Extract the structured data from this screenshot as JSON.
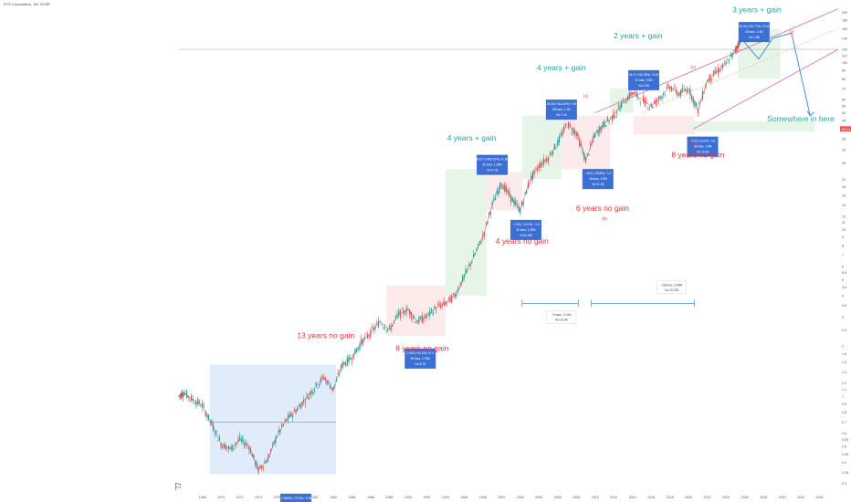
{
  "header": {
    "title": "RTX Corporation, 1M, NYSE"
  },
  "logo_glyph": "⚐",
  "colors": {
    "green_text": "#26a69a",
    "red_text": "#e53935",
    "blue_box": "#3b6fd4",
    "green_zone": "#e7f5e9",
    "red_zone": "#fdeaea",
    "blue_zone": "#e1ecfb",
    "candle_up": "#26a69a",
    "candle_down": "#ef5350",
    "channel": "#d36a9b",
    "midline": "#f4a96b",
    "arrow": "#4a8fe0",
    "last_price_bg": "#ef5350"
  },
  "chart_data": {
    "type": "line",
    "title": "",
    "xlabel": "",
    "ylabel": "",
    "scale": "log",
    "xlim": [
      1965.5,
      2036
    ],
    "ylim": [
      0.28,
      220
    ],
    "x_ticks": [
      "1968",
      "1970",
      "1972",
      "1974",
      "1976",
      "1978",
      "1980",
      "1982",
      "1984",
      "1986",
      "1988",
      "1990",
      "1992",
      "1994",
      "1996",
      "1998",
      "2000",
      "2002",
      "2004",
      "2006",
      "2008",
      "2010",
      "2012",
      "2014",
      "2016",
      "2018",
      "2020",
      "2022",
      "2024",
      "2026",
      "2028",
      "2030",
      "2032",
      "2034"
    ],
    "y_ticks": [
      "200",
      "180",
      "160",
      "140",
      "120",
      "110",
      "100",
      "90",
      "80",
      "70",
      "60",
      "55",
      "50",
      "45",
      "40",
      "35",
      "30",
      "25",
      "20",
      "18",
      "16",
      "14",
      "12",
      "11",
      "10",
      "9",
      "8",
      "7",
      "6",
      "5.5",
      "5",
      "4.5",
      "4",
      "3.5",
      "3",
      "2.5",
      "2",
      "1.8",
      "1.6",
      "1.4",
      "1.2",
      "1.1",
      "1",
      "0.9",
      "0.8",
      "0.7",
      "0.6",
      "0.55",
      "0.5",
      "0.45",
      "0.4",
      "0.35",
      "0.3"
    ],
    "last_price": {
      "value": 40.0,
      "label": "40.13"
    },
    "series": [
      {
        "values": [
          [
            1965.5,
            1.0
          ],
          [
            1966,
            1.05
          ],
          [
            1967,
            0.95
          ],
          [
            1968,
            0.88
          ],
          [
            1969,
            0.68
          ],
          [
            1970,
            0.52
          ],
          [
            1971,
            0.48
          ],
          [
            1972,
            0.55
          ],
          [
            1973,
            0.5
          ],
          [
            1974,
            0.36
          ],
          [
            1975,
            0.42
          ],
          [
            1976,
            0.58
          ],
          [
            1977,
            0.72
          ],
          [
            1978,
            0.82
          ],
          [
            1979,
            0.96
          ],
          [
            1980,
            1.12
          ],
          [
            1981,
            1.3
          ],
          [
            1982,
            1.1
          ],
          [
            1983,
            1.55
          ],
          [
            1984,
            1.7
          ],
          [
            1985,
            2.1
          ],
          [
            1986,
            2.4
          ],
          [
            1987,
            2.8
          ],
          [
            1988,
            2.5
          ],
          [
            1989,
            3.1
          ],
          [
            1990,
            3.3
          ],
          [
            1991,
            2.8
          ],
          [
            1992,
            3.0
          ],
          [
            1993,
            3.4
          ],
          [
            1994,
            3.6
          ],
          [
            1995,
            4.0
          ],
          [
            1996,
            5.2
          ],
          [
            1997,
            6.8
          ],
          [
            1998,
            9.0
          ],
          [
            1999,
            14.0
          ],
          [
            2000,
            19.0
          ],
          [
            2001,
            15.5
          ],
          [
            2002,
            13.0
          ],
          [
            2003,
            19.5
          ],
          [
            2004,
            24.0
          ],
          [
            2005,
            27.0
          ],
          [
            2006,
            33.0
          ],
          [
            2007,
            43.0
          ],
          [
            2008,
            38.0
          ],
          [
            2009,
            26.0
          ],
          [
            2010,
            37.0
          ],
          [
            2011,
            43.0
          ],
          [
            2012,
            48.0
          ],
          [
            2013,
            58.0
          ],
          [
            2014,
            66.0
          ],
          [
            2015,
            60.0
          ],
          [
            2016,
            55.0
          ],
          [
            2017,
            62.0
          ],
          [
            2018,
            72.0
          ],
          [
            2019,
            65.0
          ],
          [
            2020,
            70.0
          ],
          [
            2021,
            52.0
          ],
          [
            2022,
            78.0
          ],
          [
            2023,
            88.0
          ],
          [
            2024,
            98.0
          ],
          [
            2025,
            118.0
          ],
          [
            2025.6,
            140.0
          ]
        ]
      }
    ],
    "annotations": [
      {
        "text": "13 years no gain",
        "x": 1981.2,
        "y": 2.22,
        "color": "red"
      },
      {
        "text": "8 years no gain",
        "x": 1991.5,
        "y": 1.86,
        "color": "red"
      },
      {
        "text": "4 years +  gain",
        "x": 1996.8,
        "y": 34.0,
        "color": "green"
      },
      {
        "text": "4 years no gain",
        "x": 2002.2,
        "y": 8.2,
        "color": "red"
      },
      {
        "text": "4 years +  gain",
        "x": 2006.4,
        "y": 90.0,
        "color": "green"
      },
      {
        "text": "6 years no gain",
        "x": 2010.8,
        "y": 12.9,
        "color": "red"
      },
      {
        "text": "2 years +  gain",
        "x": 2014.6,
        "y": 140.0,
        "color": "green"
      },
      {
        "text": "8 years no gain",
        "x": 2021.0,
        "y": 27.0,
        "color": "red"
      },
      {
        "text": "3 years +  gain",
        "x": 2027.3,
        "y": 200.0,
        "color": "green"
      },
      {
        "text": "Somewhere in here",
        "x": 2032.0,
        "y": 44.5,
        "color": "green"
      }
    ],
    "wave_labels": [
      {
        "text": "(B)",
        "x": 2011.0,
        "y": 11.4
      },
      {
        "text": "(C)",
        "x": 2020.5,
        "y": 92.0
      },
      {
        "text": "(A)",
        "x": 2009.0,
        "y": 62.0
      },
      {
        "text": "(1)",
        "x": 2020.6,
        "y": 32.0
      },
      {
        "text": "(2)",
        "x": 2031.0,
        "y": 150.0
      }
    ],
    "info_boxes": [
      {
        "lines": [
          "−0.5808 (−70.9%) −0.58",
          "86 bars, 1M 1s",
          "Vol 1.8B"
        ],
        "x": 1978.0,
        "y": 0.26
      },
      {
        "lines": [
          "0.325 (+10.2%) +0.3",
          "99 bars, 2.79M",
          "Vol 8.7B"
        ],
        "x": 1991.3,
        "y": 1.93
      },
      {
        "lines": [
          "18.07 (+895.22%) +1.80",
          "50 bars, 1.35M",
          "Vol 4.1B"
        ],
        "x": 1999.0,
        "y": 28.0
      },
      {
        "lines": [
          "−2.95 (−14.0%) −1.8",
          "50 bars, 1.35M",
          "Vol 8.25B"
        ],
        "x": 2002.6,
        "y": 11.4
      },
      {
        "lines": [
          "28.35 (+114.02%) +2.8",
          "58 bars, 1.4M",
          "Vol 7.1B"
        ],
        "x": 2006.4,
        "y": 60.0
      },
      {
        "lines": [
          "−10.3 (−28.8%) −1.0",
          "45 bars, 1.9M",
          "Vol 11.1B"
        ],
        "x": 2010.3,
        "y": 23.0
      },
      {
        "lines": [
          "34.47 (+60.35%) +3.44",
          "22 bars, 9.5B",
          "Vol 2.9B"
        ],
        "x": 2015.2,
        "y": 90.0
      },
      {
        "lines": [
          "−5.03 (−8.0%) −0.5",
          "38 bars, 2.9M",
          "Vol 15.3B"
        ],
        "x": 2021.5,
        "y": 36.0
      },
      {
        "lines": [
          "50.40 (+50.77%) +5.04",
          "40 bars, 1.4M",
          "Vol 1.5B"
        ],
        "x": 2027.0,
        "y": 175.0
      }
    ],
    "range_labels": [
      {
        "lines": [
          "74 bars, 2.24M",
          "Vol 15.9B"
        ],
        "x": 2006.4,
        "y": 3.25
      },
      {
        "lines": [
          "138 bars, 3.99M",
          "Vol 19.22B"
        ],
        "x": 2018.2,
        "y": 4.9
      }
    ]
  }
}
